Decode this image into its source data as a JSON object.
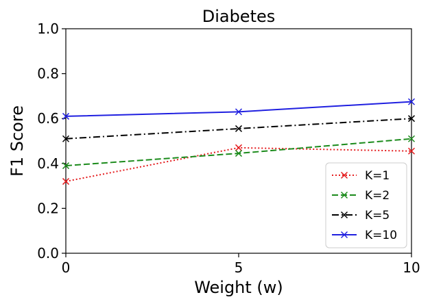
{
  "chart_data": {
    "type": "line",
    "title": "Diabetes",
    "xlabel": "Weight (w)",
    "ylabel": "F1 Score",
    "x": [
      0,
      5,
      10
    ],
    "xlim": [
      0,
      10
    ],
    "ylim": [
      0.0,
      1.0
    ],
    "xticks": [
      0,
      5,
      10
    ],
    "xtick_labels": [
      "0",
      "5",
      "10"
    ],
    "yticks": [
      0.0,
      0.2,
      0.4,
      0.6,
      0.8,
      1.0
    ],
    "ytick_labels": [
      "0.0",
      "0.2",
      "0.4",
      "0.6",
      "0.8",
      "1.0"
    ],
    "grid": false,
    "legend_location": "lower right",
    "series": [
      {
        "name": "K=1",
        "values": [
          0.32,
          0.47,
          0.455
        ],
        "color": "#e41a1c",
        "line_style": "dotted",
        "marker": "x"
      },
      {
        "name": "K=2",
        "values": [
          0.39,
          0.445,
          0.51
        ],
        "color": "#1a8a1a",
        "line_style": "dashed",
        "marker": "x"
      },
      {
        "name": "K=5",
        "values": [
          0.51,
          0.555,
          0.6
        ],
        "color": "#000000",
        "line_style": "dashdot",
        "marker": "x"
      },
      {
        "name": "K=10",
        "values": [
          0.61,
          0.63,
          0.675
        ],
        "color": "#1f1fe0",
        "line_style": "solid",
        "marker": "x"
      }
    ]
  }
}
